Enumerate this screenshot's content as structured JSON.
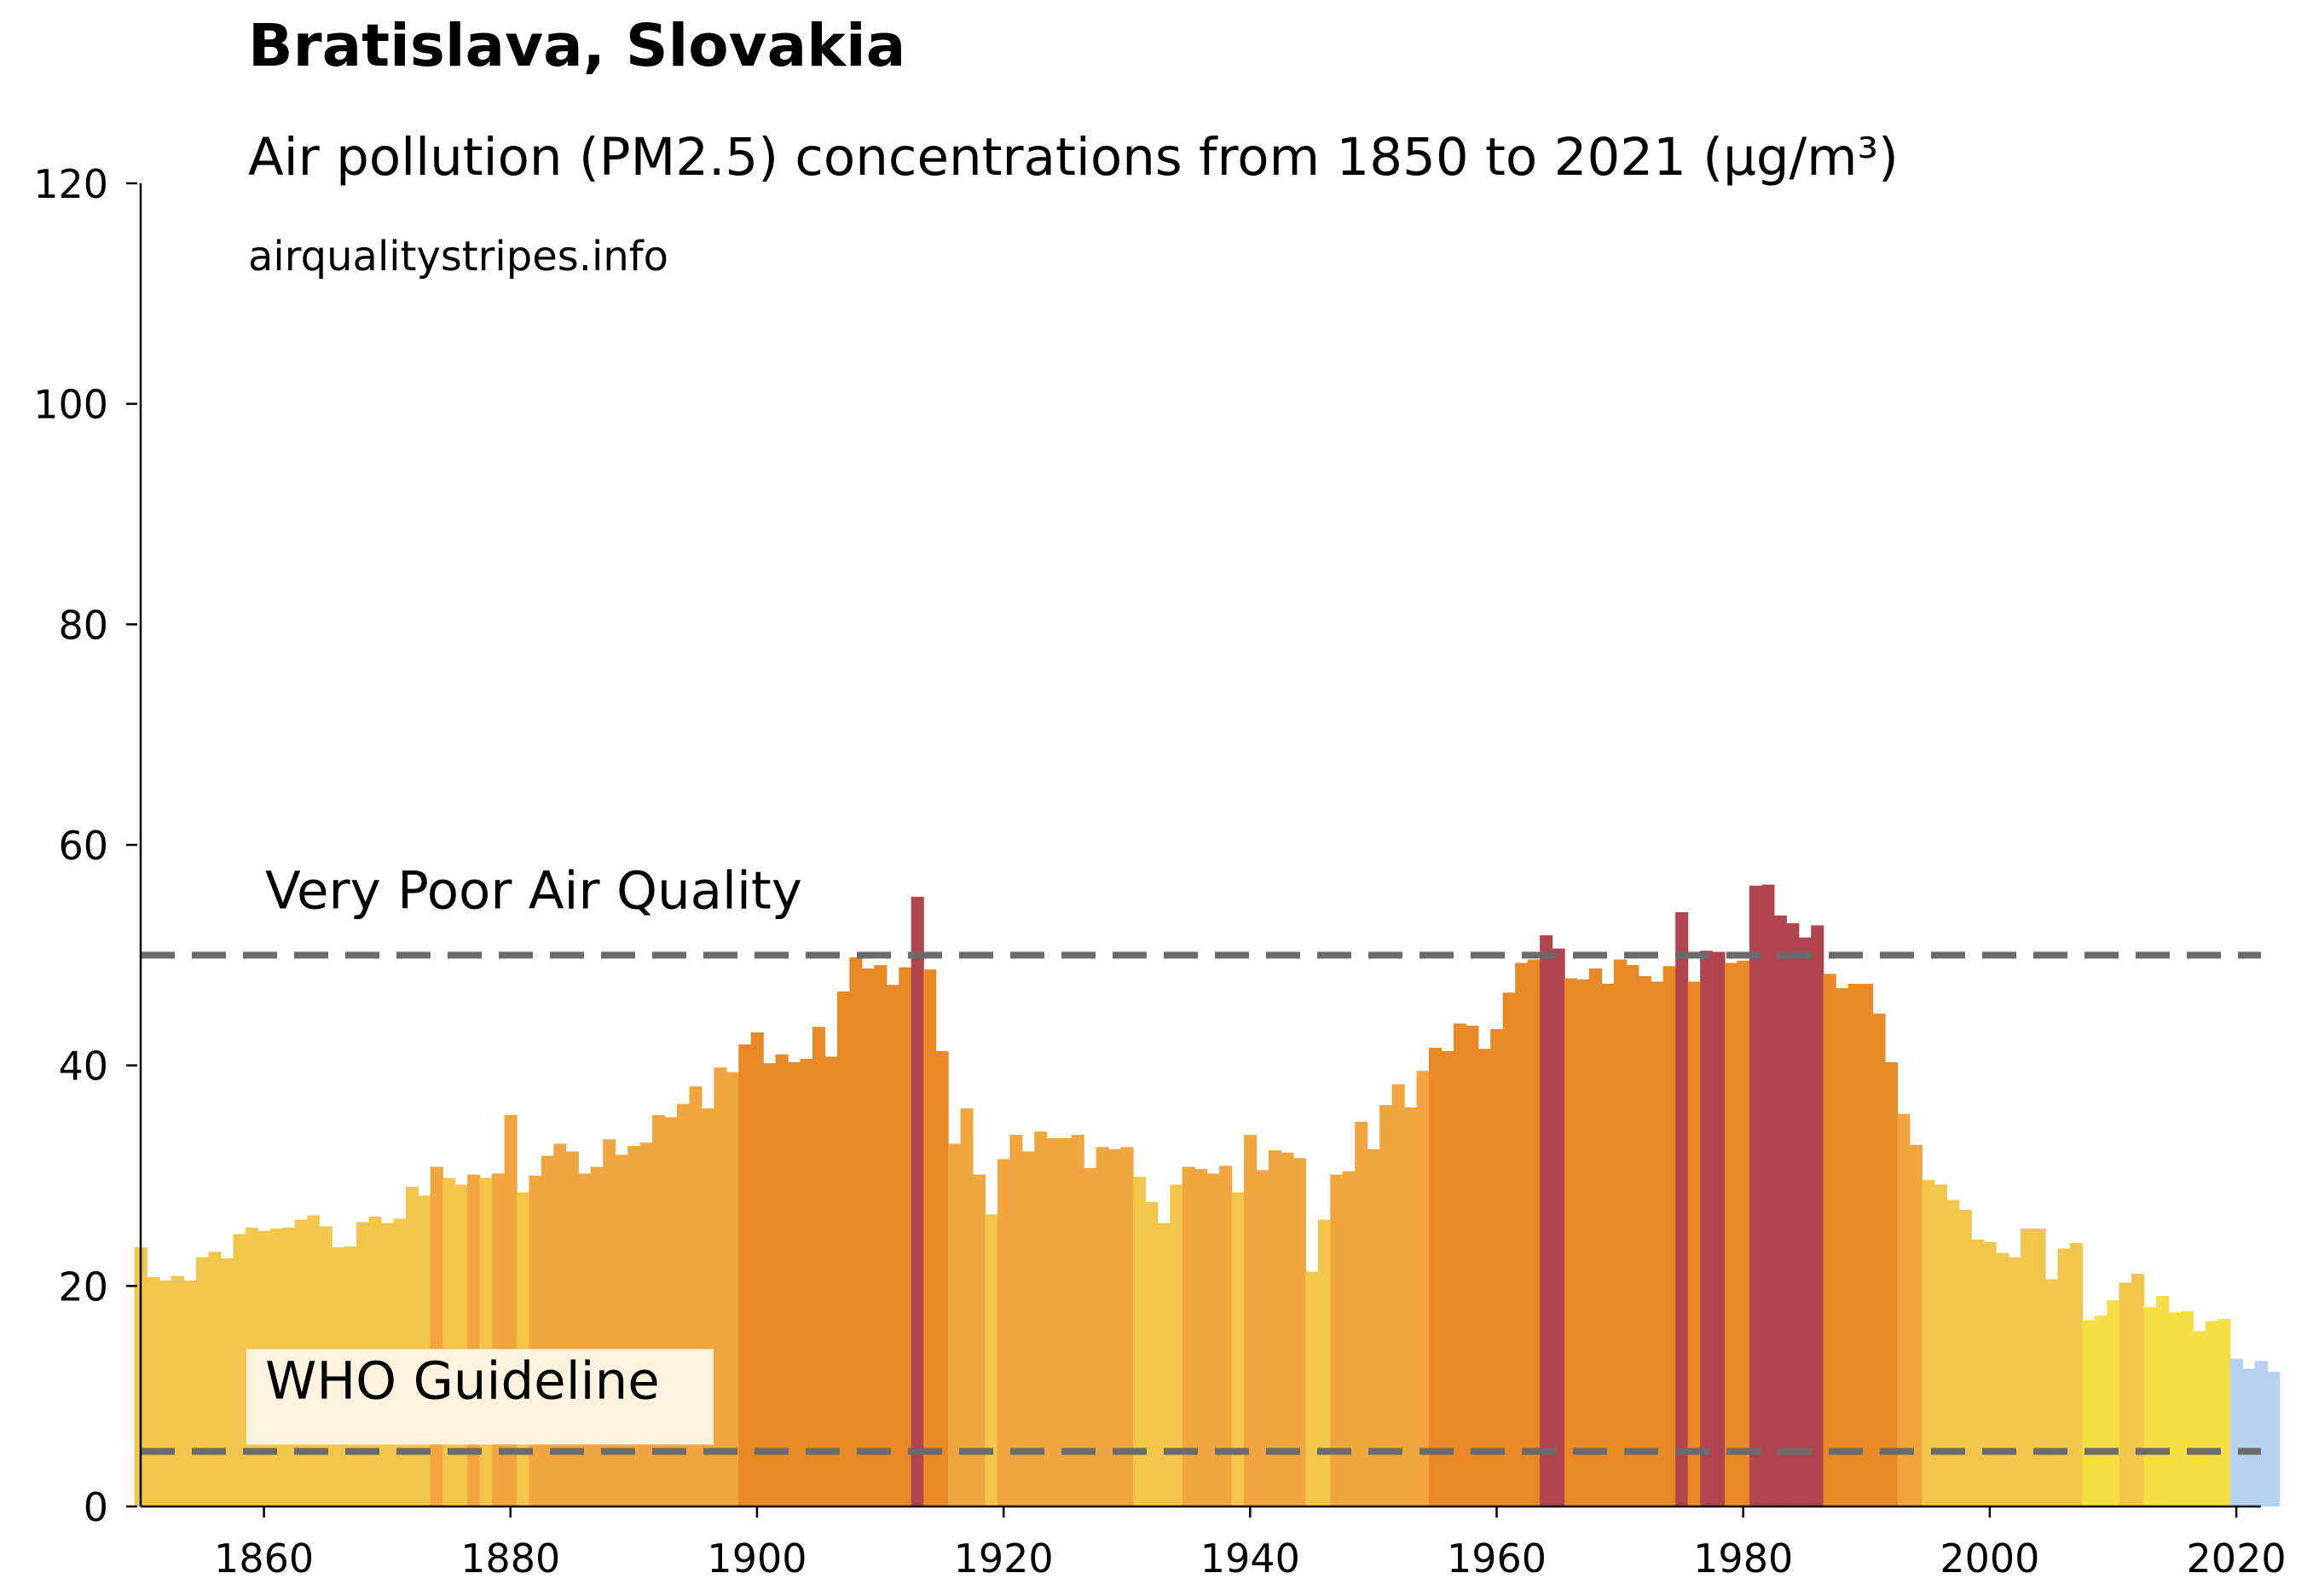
{
  "chart_data": {
    "type": "bar",
    "title": "Bratislava, Slovakia",
    "subtitle": "Air pollution (PM2.5) concentrations from 1850 to 2021 (µg/m³)",
    "source": "airqualitystripes.info",
    "xlabel": "",
    "ylabel": "",
    "xlim": [
      1850,
      2022
    ],
    "ylim": [
      0,
      120
    ],
    "x_ticks": [
      1860,
      1880,
      1900,
      1920,
      1940,
      1960,
      1980,
      2000,
      2020
    ],
    "y_ticks": [
      0,
      20,
      40,
      60,
      80,
      100,
      120
    ],
    "grid": false,
    "legend": "none",
    "x_start": 1850,
    "values": [
      23.5,
      20.8,
      20.5,
      20.9,
      20.5,
      22.6,
      23.1,
      22.5,
      24.7,
      25.3,
      25.0,
      25.2,
      25.3,
      26.0,
      26.4,
      25.4,
      23.5,
      23.6,
      25.8,
      26.3,
      25.7,
      26.1,
      29.0,
      28.2,
      30.8,
      29.8,
      29.2,
      30.1,
      29.8,
      30.2,
      35.5,
      28.5,
      30.0,
      31.8,
      32.9,
      32.2,
      30.2,
      30.8,
      33.3,
      31.9,
      32.7,
      33.0,
      35.5,
      35.3,
      36.5,
      38.1,
      36.1,
      39.8,
      39.4,
      41.9,
      43.0,
      40.2,
      41.0,
      40.3,
      40.6,
      43.5,
      40.8,
      46.7,
      49.8,
      48.8,
      49.1,
      47.3,
      48.9,
      55.3,
      48.7,
      41.3,
      32.9,
      36.1,
      30.1,
      26.5,
      31.5,
      33.7,
      32.2,
      34.0,
      33.4,
      33.4,
      33.7,
      30.7,
      32.6,
      32.4,
      32.6,
      29.9,
      27.6,
      25.7,
      29.2,
      30.8,
      30.6,
      30.2,
      30.9,
      28.5,
      33.7,
      30.5,
      32.3,
      32.1,
      31.6,
      21.3,
      26.0,
      30.1,
      30.4,
      34.9,
      32.4,
      36.4,
      38.3,
      36.2,
      39.5,
      41.6,
      41.3,
      43.8,
      43.6,
      41.5,
      43.3,
      46.6,
      49.3,
      49.6,
      51.8,
      50.6,
      47.9,
      47.8,
      48.8,
      47.4,
      49.6,
      49.1,
      48.1,
      47.6,
      49.0,
      53.9,
      47.6,
      50.4,
      50.3,
      49.3,
      49.5,
      56.3,
      56.4,
      53.6,
      52.9,
      51.6,
      52.7,
      48.3,
      47.0,
      47.4,
      47.4,
      44.7,
      40.3,
      35.6,
      32.8,
      29.6,
      29.2,
      27.8,
      26.9,
      24.2,
      24.0,
      23.0,
      22.6,
      25.2,
      25.2,
      20.6,
      23.4,
      23.9,
      16.9,
      17.3,
      18.7,
      20.3,
      21.1,
      18.1,
      19.1,
      17.6,
      17.7,
      15.9,
      16.8,
      17.0,
      13.4,
      12.5,
      13.2,
      12.2
    ],
    "reference_lines": [
      {
        "label": "Very Poor Air Quality",
        "value": 50
      },
      {
        "label": "WHO Guideline",
        "value": 5
      }
    ],
    "colors": {
      "blue": "#b4d1ef",
      "bright_yellow": "#f6de45",
      "yellow": "#f2c54b",
      "light_orange": "#f0a53f",
      "orange": "#e88926",
      "red": "#b0444f",
      "guide_line": "#6b6b6b",
      "label_box": "#fdf3de"
    }
  }
}
